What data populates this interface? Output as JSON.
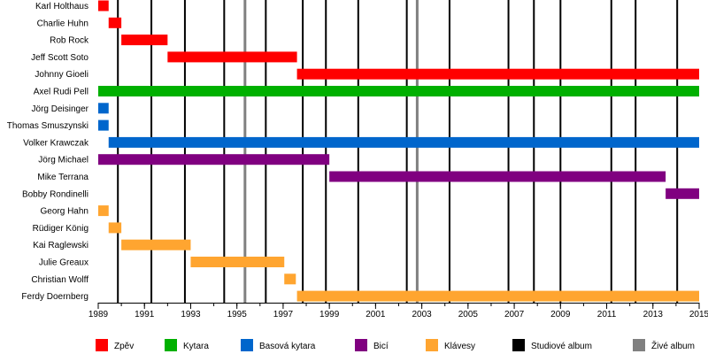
{
  "chart_data": {
    "type": "timeline",
    "x_ticks": [
      "1989",
      "1991",
      "1993",
      "1995",
      "1997",
      "1999",
      "2001",
      "2003",
      "2005",
      "2007",
      "2009",
      "2011",
      "2013",
      "2015"
    ],
    "xlim": [
      1989.0,
      2015.0
    ],
    "members": [
      {
        "name": "Karl Holthaus",
        "periods": [
          {
            "role": "Zpěv",
            "start": 1989.0,
            "end": 1989.45
          }
        ]
      },
      {
        "name": "Charlie Huhn",
        "periods": [
          {
            "role": "Zpěv",
            "start": 1989.45,
            "end": 1990.0
          }
        ]
      },
      {
        "name": "Rob Rock",
        "periods": [
          {
            "role": "Zpěv",
            "start": 1990.0,
            "end": 1992.0
          }
        ]
      },
      {
        "name": "Jeff Scott Soto",
        "periods": [
          {
            "role": "Zpěv",
            "start": 1992.0,
            "end": 1997.6
          }
        ]
      },
      {
        "name": "Johnny Gioeli",
        "periods": [
          {
            "role": "Zpěv",
            "start": 1997.6,
            "end": 2015.0
          }
        ]
      },
      {
        "name": "Axel Rudi Pell",
        "periods": [
          {
            "role": "Kytara",
            "start": 1989.0,
            "end": 2015.0
          }
        ]
      },
      {
        "name": "Jörg Deisinger",
        "periods": [
          {
            "role": "Basová kytara",
            "start": 1989.0,
            "end": 1989.45
          }
        ]
      },
      {
        "name": "Thomas Smuszynski",
        "periods": [
          {
            "role": "Basová kytara",
            "start": 1989.0,
            "end": 1989.45
          }
        ]
      },
      {
        "name": "Volker Krawczak",
        "periods": [
          {
            "role": "Basová kytara",
            "start": 1989.45,
            "end": 2015.0
          }
        ]
      },
      {
        "name": "Jörg Michael",
        "periods": [
          {
            "role": "Bicí",
            "start": 1989.0,
            "end": 1999.0
          }
        ]
      },
      {
        "name": "Mike Terrana",
        "periods": [
          {
            "role": "Bicí",
            "start": 1999.0,
            "end": 2013.55
          }
        ]
      },
      {
        "name": "Bobby Rondinelli",
        "periods": [
          {
            "role": "Bicí",
            "start": 2013.55,
            "end": 2015.0
          }
        ]
      },
      {
        "name": "Georg Hahn",
        "periods": [
          {
            "role": "Klávesy",
            "start": 1989.0,
            "end": 1989.45
          }
        ]
      },
      {
        "name": "Rüdiger König",
        "periods": [
          {
            "role": "Klávesy",
            "start": 1989.45,
            "end": 1990.0
          }
        ]
      },
      {
        "name": "Kai Raglewski",
        "periods": [
          {
            "role": "Klávesy",
            "start": 1990.0,
            "end": 1993.0
          }
        ]
      },
      {
        "name": "Julie Greaux",
        "periods": [
          {
            "role": "Klávesy",
            "start": 1993.0,
            "end": 1997.05
          }
        ]
      },
      {
        "name": "Christian Wolff",
        "periods": [
          {
            "role": "Klávesy",
            "start": 1997.05,
            "end": 1997.55
          }
        ]
      },
      {
        "name": "Ferdy Doernberg",
        "periods": [
          {
            "role": "Klávesy",
            "start": 1997.6,
            "end": 2015.0
          }
        ]
      }
    ],
    "studio_albums": [
      1989.85,
      1991.3,
      1992.75,
      1994.45,
      1996.25,
      1997.85,
      1998.85,
      2000.25,
      2002.35,
      2004.2,
      2006.75,
      2007.85,
      2009.0,
      2011.2,
      2012.25,
      2014.05
    ],
    "live_albums": [
      1995.35,
      2002.8
    ],
    "legend": [
      {
        "label": "Zpěv",
        "color": "#ff0000"
      },
      {
        "label": "Kytara",
        "color": "#00b000"
      },
      {
        "label": "Basová kytara",
        "color": "#0066cc"
      },
      {
        "label": "Bicí",
        "color": "#800080"
      },
      {
        "label": "Klávesy",
        "color": "#ffa530"
      },
      {
        "label": "Studiové album",
        "color": "#000000"
      },
      {
        "label": "Živé album",
        "color": "#808080"
      }
    ],
    "colors": {
      "Zpěv": "#ff0000",
      "Kytara": "#00b000",
      "Basová kytara": "#0066cc",
      "Bicí": "#800080",
      "Klávesy": "#ffa530",
      "studio": "#000000",
      "live": "#808080"
    }
  }
}
